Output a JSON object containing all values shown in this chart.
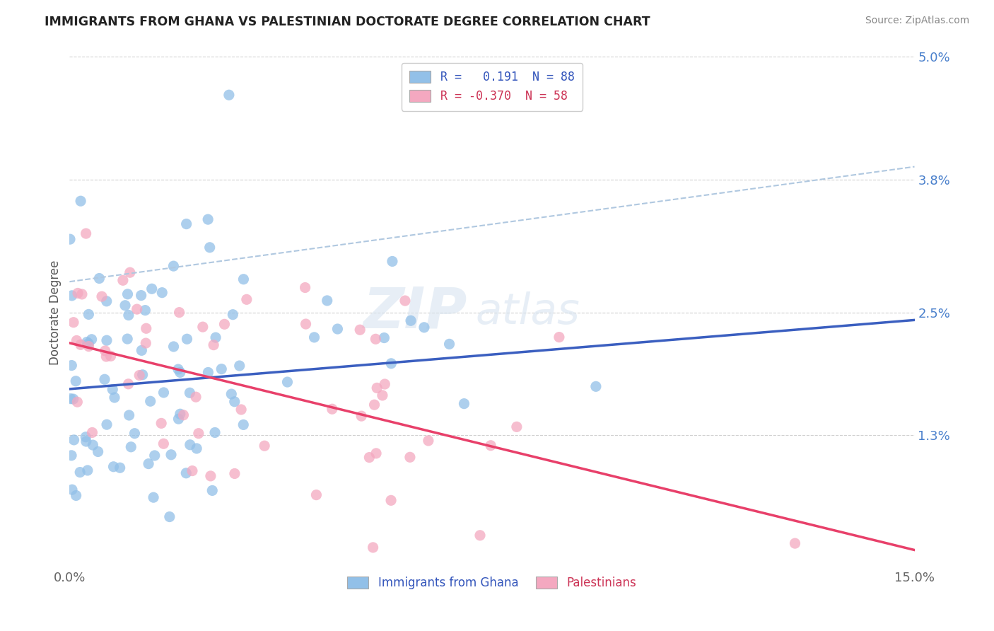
{
  "title": "IMMIGRANTS FROM GHANA VS PALESTINIAN DOCTORATE DEGREE CORRELATION CHART",
  "source": "Source: ZipAtlas.com",
  "ylabel": "Doctorate Degree",
  "xlim": [
    0.0,
    0.15
  ],
  "ylim": [
    0.0,
    0.05
  ],
  "yticks": [
    0.013,
    0.025,
    0.038,
    0.05
  ],
  "ytick_labels": [
    "1.3%",
    "2.5%",
    "3.8%",
    "5.0%"
  ],
  "xticks": [
    0.0,
    0.15
  ],
  "xtick_labels": [
    "0.0%",
    "15.0%"
  ],
  "color_ghana": "#92c0e8",
  "color_palestinians": "#f4a8c0",
  "color_trendline_ghana": "#3b5fc0",
  "color_trendline_palestinians": "#e8406a",
  "color_dashed_upper": "#b0c8e0",
  "background_color": "#ffffff",
  "ghana_intercept": 0.0175,
  "ghana_slope": 0.045,
  "pal_intercept": 0.022,
  "pal_slope": -0.135,
  "dashed_intercept": 0.028,
  "dashed_slope": 0.075
}
